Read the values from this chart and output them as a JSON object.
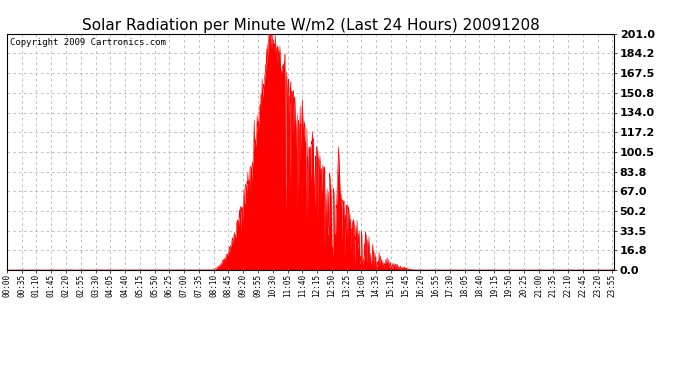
{
  "title": "Solar Radiation per Minute W/m2 (Last 24 Hours) 20091208",
  "copyright": "Copyright 2009 Cartronics.com",
  "yticks": [
    0.0,
    16.8,
    33.5,
    50.2,
    67.0,
    83.8,
    100.5,
    117.2,
    134.0,
    150.8,
    167.5,
    184.2,
    201.0
  ],
  "ymax": 201.0,
  "ymin": 0.0,
  "fill_color": "#FF0000",
  "line_color": "#FF0000",
  "grid_color": "#AAAAAA",
  "bg_color": "#FFFFFF",
  "dashed_line_color": "#FF0000",
  "title_fontsize": 11,
  "copyright_fontsize": 6.5,
  "ytick_fontsize": 8,
  "xtick_fontsize": 5.5,
  "xtick_step_minutes": 35,
  "n_minutes": 1440,
  "sunrise_minute": 480,
  "sunset_minute": 975,
  "peak_minute": 623,
  "peak_value": 201.0
}
